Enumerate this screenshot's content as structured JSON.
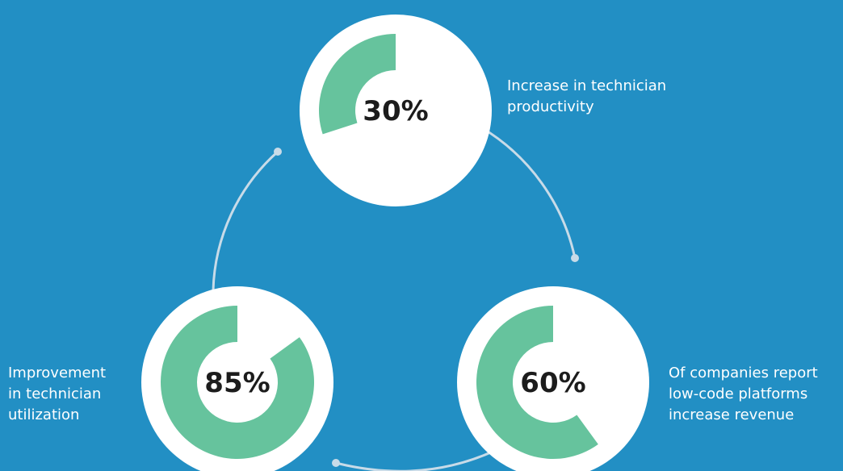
{
  "colors": {
    "background": "#228fc4",
    "circle_fill": "#ffffff",
    "ring_fill": "#66c39d",
    "connector": "#c8dbe8",
    "value_text": "#1c1c1c",
    "caption_text": "#ffffff"
  },
  "stats": [
    {
      "value": "30%",
      "fraction": 0.3,
      "caption_lines": [
        "Increase in technician",
        "productivity"
      ]
    },
    {
      "value": "60%",
      "fraction": 0.6,
      "caption_lines": [
        "Of companies report",
        "low-code platforms",
        "increase revenue"
      ]
    },
    {
      "value": "85%",
      "fraction": 0.85,
      "caption_lines": [
        "Improvement",
        "in technician",
        "utilization"
      ]
    }
  ]
}
